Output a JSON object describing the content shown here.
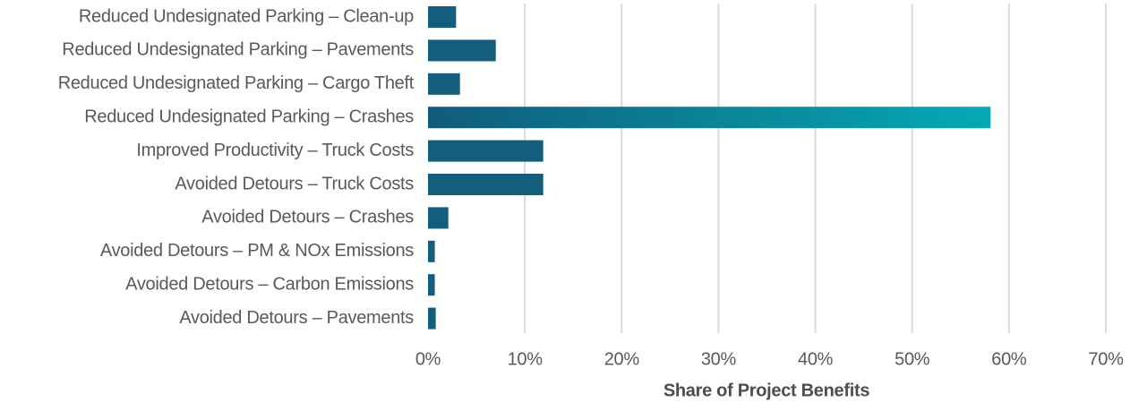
{
  "chart_data": {
    "type": "barh",
    "xlabel": "Share of Project Benefits",
    "categories": [
      "Reduced Undesignated Parking – Clean-up",
      "Reduced Undesignated Parking – Pavements",
      "Reduced Undesignated Parking – Cargo Theft",
      "Reduced Undesignated Parking – Crashes",
      "Improved Productivity – Truck Costs",
      "Avoided Detours – Truck Costs",
      "Avoided Detours – Crashes",
      "Avoided Detours – PM & NOx Emissions",
      "Avoided Detours – Carbon Emissions",
      "Avoided Detours – Pavements"
    ],
    "values": [
      2.9,
      7.0,
      3.3,
      58.1,
      11.9,
      11.9,
      2.1,
      0.7,
      0.7,
      0.8
    ],
    "colors": [
      "#135e7c",
      "#135e7c",
      "#135e7c",
      [
        "#105c7a",
        "#04aab5"
      ],
      "#135e7c",
      "#135e7c",
      "#135e7c",
      "#135e7c",
      "#135e7c",
      "#135e7c"
    ],
    "xlim": [
      0,
      70
    ],
    "xticks": [
      {
        "value": 0,
        "label": "0%"
      },
      {
        "value": 10,
        "label": "10%"
      },
      {
        "value": 20,
        "label": "20%"
      },
      {
        "value": 30,
        "label": "30%"
      },
      {
        "value": 40,
        "label": "40%"
      },
      {
        "value": 50,
        "label": "50%"
      },
      {
        "value": 60,
        "label": "60%"
      },
      {
        "value": 70,
        "label": "70%"
      }
    ],
    "grid": true
  }
}
